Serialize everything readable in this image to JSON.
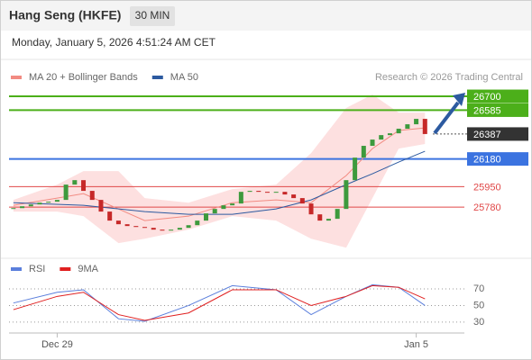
{
  "header": {
    "title": "Hang Seng (HKFE)",
    "interval": "30 MIN",
    "timestamp": "Monday, January 5, 2026 4:51:24 AM CET"
  },
  "chart_data": [
    {
      "type": "candlestick",
      "credit": "Research © 2026 Trading Central",
      "xlim": [
        -0.5,
        51.5
      ],
      "xticks": [
        {
          "value": 5,
          "label": "Dec 29"
        },
        {
          "value": 46,
          "label": "Jan 5"
        }
      ],
      "ylim": [
        25370,
        26790
      ],
      "up_color": "#3d9a3d",
      "down_color": "#c62828",
      "close": [
        25772,
        25787,
        25802,
        25817,
        25825,
        25840,
        25967,
        26004,
        25915,
        25840,
        25743,
        25668,
        25638,
        25623,
        25615,
        25608,
        25593,
        25585,
        25593,
        25608,
        25630,
        25668,
        25728,
        25765,
        25795,
        25810,
        25907,
        25915,
        25907,
        25900,
        25907,
        25885,
        25855,
        25810,
        25720,
        25668,
        25683,
        25765,
        26004,
        26191,
        26289,
        26341,
        26378,
        26393,
        26431,
        26468,
        26513,
        26387
      ],
      "bollinger": {
        "color": "#fde0e0",
        "x": [
          0,
          5,
          8,
          12,
          15,
          20,
          25,
          30,
          34,
          38,
          41,
          44,
          47
        ],
        "upper": [
          25840,
          25967,
          26079,
          26079,
          25855,
          25817,
          25930,
          25967,
          26229,
          26603,
          26715,
          26565,
          26565
        ],
        "lower": [
          25743,
          25743,
          25705,
          25481,
          25518,
          25593,
          25705,
          25668,
          25518,
          25443,
          25855,
          26266,
          26304
        ]
      },
      "series": [
        {
          "name": "MA 20 + Bollinger Bands",
          "color": "#f28b82",
          "x": [
            0,
            5,
            8,
            12,
            15,
            20,
            25,
            30,
            34,
            38,
            41,
            44,
            47
          ],
          "values": [
            25795,
            25855,
            25892,
            25765,
            25668,
            25705,
            25817,
            25840,
            25817,
            26042,
            26266,
            26416,
            26438
          ]
        },
        {
          "name": "MA 50",
          "color": "#2c5aa0",
          "x": [
            0,
            8,
            15,
            20,
            25,
            30,
            34,
            38,
            41,
            44,
            47
          ],
          "values": [
            25817,
            25795,
            25743,
            25720,
            25720,
            25765,
            25840,
            25967,
            26057,
            26154,
            26244
          ]
        }
      ],
      "levels": [
        {
          "value": 26700,
          "color": "#4caf1a",
          "box": true
        },
        {
          "value": 26585,
          "color": "#4caf1a",
          "box": true
        },
        {
          "value": 26387,
          "color": "#333333",
          "box": true,
          "dotted": true
        },
        {
          "value": 26180,
          "color": "#3b73e0",
          "box": true
        },
        {
          "value": 25950,
          "color": "#e04848",
          "box": false
        },
        {
          "value": 25780,
          "color": "#e04848",
          "box": false
        }
      ]
    },
    {
      "type": "line",
      "ylim": [
        19,
        82
      ],
      "yticks": [
        30,
        50,
        70
      ],
      "series": [
        {
          "name": "RSI",
          "color": "#5b7fdc",
          "x": [
            0,
            5,
            8,
            12,
            15,
            20,
            25,
            30,
            34,
            38,
            41,
            44,
            47
          ],
          "values": [
            53,
            66,
            69,
            34,
            31,
            50,
            74,
            69,
            39,
            61,
            75,
            72,
            50
          ]
        },
        {
          "name": "9MA",
          "color": "#e02020",
          "x": [
            0,
            5,
            8,
            12,
            15,
            20,
            25,
            30,
            34,
            38,
            41,
            44,
            47
          ],
          "values": [
            45,
            61,
            66,
            39,
            32,
            41,
            69,
            69,
            50,
            61,
            74,
            72,
            58
          ]
        }
      ]
    }
  ]
}
